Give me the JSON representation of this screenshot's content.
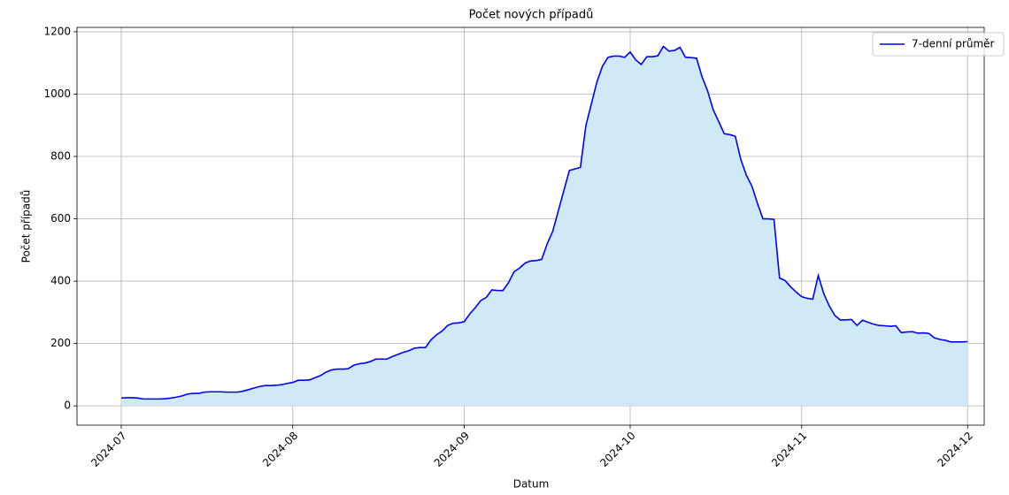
{
  "chart_data": {
    "type": "area_line",
    "title": "Počet nových případů",
    "xlabel": "Datum",
    "ylabel": "Počet případů",
    "x": [
      "2024-07-01",
      "2024-07-02",
      "2024-07-03",
      "2024-07-04",
      "2024-07-05",
      "2024-07-06",
      "2024-07-07",
      "2024-07-08",
      "2024-07-09",
      "2024-07-10",
      "2024-07-11",
      "2024-07-12",
      "2024-07-13",
      "2024-07-14",
      "2024-07-15",
      "2024-07-16",
      "2024-07-17",
      "2024-07-18",
      "2024-07-19",
      "2024-07-20",
      "2024-07-21",
      "2024-07-22",
      "2024-07-23",
      "2024-07-24",
      "2024-07-25",
      "2024-07-26",
      "2024-07-27",
      "2024-07-28",
      "2024-07-29",
      "2024-07-30",
      "2024-07-31",
      "2024-08-01",
      "2024-08-02",
      "2024-08-03",
      "2024-08-04",
      "2024-08-05",
      "2024-08-06",
      "2024-08-07",
      "2024-08-08",
      "2024-08-09",
      "2024-08-10",
      "2024-08-11",
      "2024-08-12",
      "2024-08-13",
      "2024-08-14",
      "2024-08-15",
      "2024-08-16",
      "2024-08-17",
      "2024-08-18",
      "2024-08-19",
      "2024-08-20",
      "2024-08-21",
      "2024-08-22",
      "2024-08-23",
      "2024-08-24",
      "2024-08-25",
      "2024-08-26",
      "2024-08-27",
      "2024-08-28",
      "2024-08-29",
      "2024-08-30",
      "2024-08-31",
      "2024-09-01",
      "2024-09-02",
      "2024-09-03",
      "2024-09-04",
      "2024-09-05",
      "2024-09-06",
      "2024-09-07",
      "2024-09-08",
      "2024-09-09",
      "2024-09-10",
      "2024-09-11",
      "2024-09-12",
      "2024-09-13",
      "2024-09-14",
      "2024-09-15",
      "2024-09-16",
      "2024-09-17",
      "2024-09-18",
      "2024-09-19",
      "2024-09-20",
      "2024-09-21",
      "2024-09-22",
      "2024-09-23",
      "2024-09-24",
      "2024-09-25",
      "2024-09-26",
      "2024-09-27",
      "2024-09-28",
      "2024-09-29",
      "2024-09-30",
      "2024-10-01",
      "2024-10-02",
      "2024-10-03",
      "2024-10-04",
      "2024-10-05",
      "2024-10-06",
      "2024-10-07",
      "2024-10-08",
      "2024-10-09",
      "2024-10-10",
      "2024-10-11",
      "2024-10-12",
      "2024-10-13",
      "2024-10-14",
      "2024-10-15",
      "2024-10-16",
      "2024-10-17",
      "2024-10-18",
      "2024-10-19",
      "2024-10-20",
      "2024-10-21",
      "2024-10-22",
      "2024-10-23",
      "2024-10-24",
      "2024-10-25",
      "2024-10-26",
      "2024-10-27",
      "2024-10-28",
      "2024-10-29",
      "2024-10-30",
      "2024-10-31",
      "2024-11-01",
      "2024-11-02",
      "2024-11-03",
      "2024-11-04",
      "2024-11-05",
      "2024-11-06",
      "2024-11-07",
      "2024-11-08",
      "2024-11-09",
      "2024-11-10",
      "2024-11-11",
      "2024-11-12",
      "2024-11-13",
      "2024-11-14",
      "2024-11-15",
      "2024-11-16",
      "2024-11-17",
      "2024-11-18",
      "2024-11-19",
      "2024-11-20",
      "2024-11-21",
      "2024-11-22",
      "2024-11-23",
      "2024-11-24",
      "2024-11-25",
      "2024-11-26",
      "2024-11-27",
      "2024-11-28",
      "2024-11-29",
      "2024-11-30",
      "2024-12-01"
    ],
    "series": [
      {
        "name": "7-denní průměr",
        "color": "#0000ff",
        "fill_color": "#cfe9f6",
        "values": [
          25,
          26,
          26,
          25,
          22,
          22,
          22,
          22,
          23,
          25,
          28,
          32,
          38,
          40,
          40,
          44,
          45,
          45,
          45,
          44,
          44,
          44,
          47,
          52,
          57,
          62,
          65,
          65,
          66,
          68,
          72,
          75,
          82,
          82,
          83,
          90,
          97,
          108,
          115,
          118,
          118,
          119,
          130,
          135,
          137,
          142,
          150,
          150,
          150,
          158,
          165,
          172,
          177,
          185,
          187,
          187,
          212,
          228,
          240,
          258,
          265,
          266,
          270,
          295,
          315,
          338,
          348,
          372,
          370,
          370,
          395,
          430,
          442,
          458,
          465,
          466,
          470,
          520,
          560,
          625,
          690,
          755,
          760,
          765,
          900,
          970,
          1040,
          1090,
          1118,
          1122,
          1122,
          1118,
          1135,
          1110,
          1095,
          1120,
          1120,
          1123,
          1153,
          1138,
          1140,
          1150,
          1118,
          1117,
          1115,
          1055,
          1010,
          950,
          912,
          873,
          870,
          865,
          790,
          740,
          705,
          650,
          600,
          600,
          598,
          410,
          402,
          382,
          365,
          350,
          345,
          342,
          418,
          360,
          320,
          290,
          275,
          276,
          277,
          258,
          275,
          268,
          262,
          258,
          257,
          255,
          257,
          235,
          237,
          238,
          233,
          234,
          232,
          218,
          213,
          210,
          205,
          205,
          205,
          206
        ]
      }
    ],
    "xlim": [
      "2024-06-23",
      "2024-12-04"
    ],
    "xticks": [
      {
        "value": "2024-07-01",
        "label": "2024-07"
      },
      {
        "value": "2024-08-01",
        "label": "2024-08"
      },
      {
        "value": "2024-09-01",
        "label": "2024-09"
      },
      {
        "value": "2024-10-01",
        "label": "2024-10"
      },
      {
        "value": "2024-11-01",
        "label": "2024-11"
      },
      {
        "value": "2024-12-01",
        "label": "2024-12"
      }
    ],
    "ylim": [
      -62,
      1214
    ],
    "yticks": [
      0,
      200,
      400,
      600,
      800,
      1000,
      1200
    ],
    "grid": true,
    "legend": "upper right"
  }
}
